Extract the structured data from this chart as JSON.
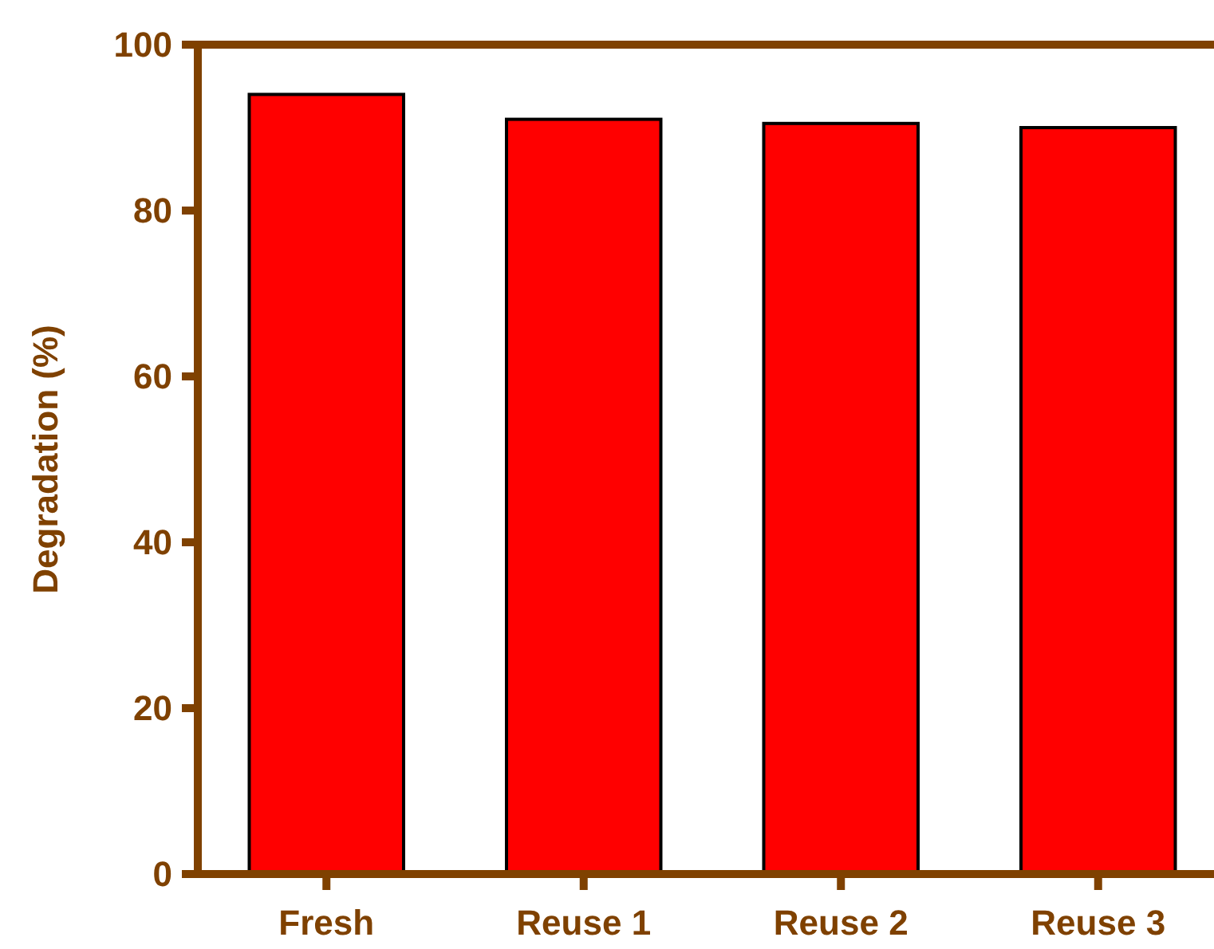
{
  "chart_data": {
    "type": "bar",
    "ylabel": "Degradation (%)",
    "categories": [
      "Fresh",
      "Reuse 1",
      "Reuse 2",
      "Reuse 3"
    ],
    "values": [
      94.0,
      91.0,
      90.5,
      90.0
    ],
    "color": "#ff0000",
    "ylim": [
      0,
      100
    ],
    "yticks": [
      0,
      20,
      40,
      60,
      80,
      100
    ],
    "grid": false
  }
}
